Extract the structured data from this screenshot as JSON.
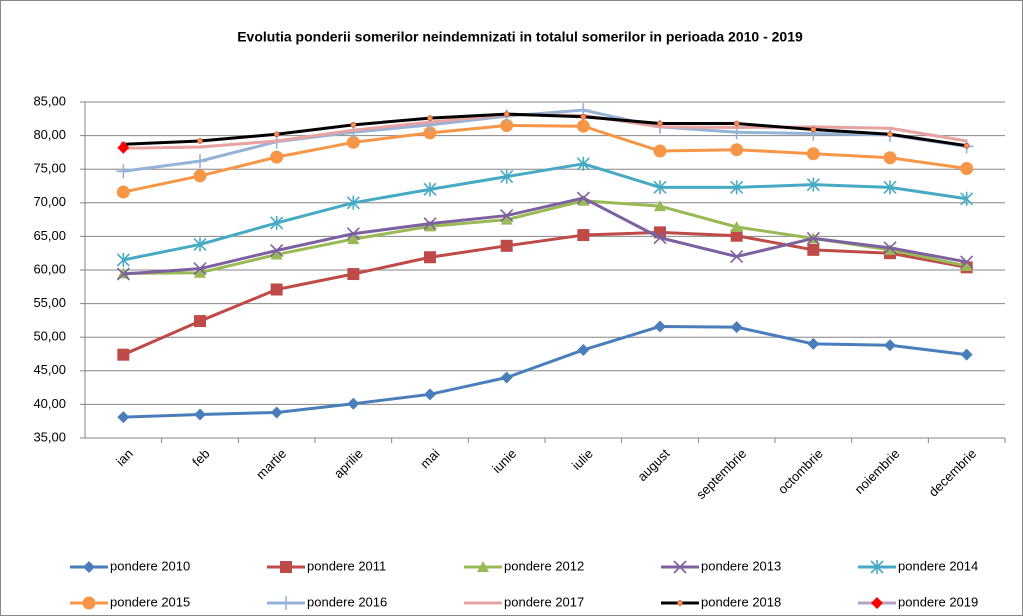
{
  "chart_data": {
    "type": "line",
    "title": "Evolutia ponderii somerilor neindemnizati in totalul somerilor in perioada 2010 -  2019",
    "categories": [
      "ian",
      "feb",
      "martie",
      "aprilie",
      "mai",
      "iunie",
      "iulie",
      "august",
      "septembrie",
      "octombrie",
      "noiembrie",
      "decembrie"
    ],
    "ylim": [
      35,
      85
    ],
    "yticks": [
      {
        "value": 35,
        "label": "35,00"
      },
      {
        "value": 40,
        "label": "40,00"
      },
      {
        "value": 45,
        "label": "45,00"
      },
      {
        "value": 50,
        "label": "50,00"
      },
      {
        "value": 55,
        "label": "55,00"
      },
      {
        "value": 60,
        "label": "60,00"
      },
      {
        "value": 65,
        "label": "65,00"
      },
      {
        "value": 70,
        "label": "70,00"
      },
      {
        "value": 75,
        "label": "75,00"
      },
      {
        "value": 80,
        "label": "80,00"
      },
      {
        "value": 85,
        "label": "85,00"
      }
    ],
    "grid": true,
    "legend": "bottom",
    "series": [
      {
        "name": "pondere 2010",
        "color": "#4a7ebb",
        "marker": "diamond",
        "values": [
          38.1,
          38.5,
          38.8,
          40.1,
          41.5,
          44.0,
          48.1,
          51.6,
          51.5,
          49.0,
          48.8,
          47.4
        ]
      },
      {
        "name": "pondere 2011",
        "color": "#be4b48",
        "marker": "square",
        "values": [
          47.4,
          52.4,
          57.1,
          59.4,
          61.9,
          63.6,
          65.2,
          65.6,
          65.1,
          63.0,
          62.5,
          60.4
        ]
      },
      {
        "name": "pondere 2012",
        "color": "#98b954",
        "marker": "triangle",
        "values": [
          59.5,
          59.6,
          62.3,
          64.6,
          66.5,
          67.5,
          70.3,
          69.5,
          66.4,
          64.7,
          63.0,
          60.6
        ]
      },
      {
        "name": "pondere 2013",
        "color": "#7d60a0",
        "marker": "x",
        "values": [
          59.4,
          60.2,
          62.9,
          65.4,
          66.9,
          68.1,
          70.7,
          64.8,
          62.0,
          64.7,
          63.3,
          61.2
        ]
      },
      {
        "name": "pondere 2014",
        "color": "#46aac5",
        "marker": "star",
        "values": [
          61.5,
          63.8,
          67.0,
          70.0,
          72.0,
          73.9,
          75.8,
          72.3,
          72.3,
          72.7,
          72.3,
          70.6
        ]
      },
      {
        "name": "pondere 2015",
        "color": "#f79646",
        "marker": "circle",
        "values": [
          71.6,
          74.0,
          76.8,
          79.0,
          80.4,
          81.5,
          81.4,
          77.7,
          77.9,
          77.3,
          76.7,
          75.1
        ]
      },
      {
        "name": "pondere 2016",
        "color": "#95b3d7",
        "marker": "plus",
        "values": [
          74.7,
          76.2,
          79.1,
          80.5,
          81.6,
          82.9,
          83.8,
          81.3,
          80.5,
          80.3,
          80.1,
          78.4
        ]
      },
      {
        "name": "pondere 2017",
        "color": "#e6a3a1",
        "marker": "none",
        "values": [
          78.1,
          78.3,
          79.2,
          80.8,
          82.0,
          83.1,
          83.0,
          81.3,
          81.2,
          81.3,
          81.1,
          79.2
        ]
      },
      {
        "name": "pondere 2018",
        "color": "#000000",
        "marker": "dot",
        "marker_color": "#f79646",
        "values": [
          78.7,
          79.2,
          80.2,
          81.6,
          82.6,
          83.2,
          82.8,
          81.8,
          81.8,
          80.9,
          80.2,
          78.5
        ]
      },
      {
        "name": "pondere 2019",
        "color": "#b3a2c7",
        "marker": "diamond",
        "marker_color": "#ff0000",
        "values": [
          78.2,
          null,
          null,
          null,
          null,
          null,
          null,
          null,
          null,
          null,
          null,
          null
        ]
      }
    ]
  }
}
